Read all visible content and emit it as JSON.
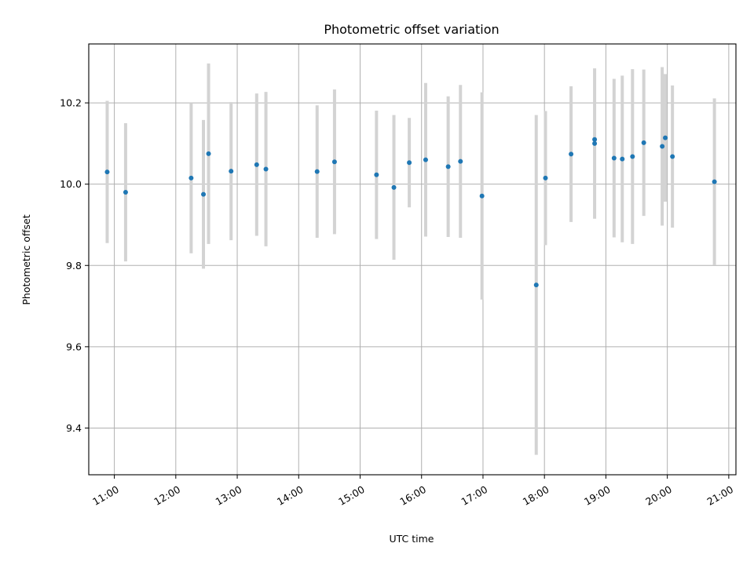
{
  "chart_data": {
    "type": "scatter",
    "title": "Photometric offset variation",
    "xlabel": "UTC time",
    "ylabel": "Photometric offset",
    "grid": true,
    "xlim": [
      "10:35",
      "21:07"
    ],
    "ylim": [
      9.285,
      10.345
    ],
    "x_ticks": [
      "11:00",
      "12:00",
      "13:00",
      "14:00",
      "15:00",
      "16:00",
      "17:00",
      "18:00",
      "19:00",
      "20:00",
      "21:00"
    ],
    "y_ticks": [
      "9.4",
      "9.6",
      "9.8",
      "10.0",
      "10.2"
    ],
    "colors": {
      "points": "#1f77b4",
      "errorbars": "#d3d3d3",
      "grid": "#b0b0b0"
    },
    "series": [
      {
        "points": [
          {
            "x": "10:53",
            "y": 10.03,
            "err": 0.175
          },
          {
            "x": "11:11",
            "y": 9.98,
            "err": 0.17
          },
          {
            "x": "12:15",
            "y": 10.015,
            "err": 0.185
          },
          {
            "x": "12:27",
            "y": 9.975,
            "err": 0.183
          },
          {
            "x": "12:32",
            "y": 10.075,
            "err": 0.222
          },
          {
            "x": "12:54",
            "y": 10.032,
            "err": 0.17
          },
          {
            "x": "13:19",
            "y": 10.048,
            "err": 0.175
          },
          {
            "x": "13:28",
            "y": 10.037,
            "err": 0.19
          },
          {
            "x": "14:18",
            "y": 10.031,
            "err": 0.163
          },
          {
            "x": "14:35",
            "y": 10.055,
            "err": 0.178
          },
          {
            "x": "15:16",
            "y": 10.023,
            "err": 0.158
          },
          {
            "x": "15:33",
            "y": 9.992,
            "err": 0.178
          },
          {
            "x": "15:48",
            "y": 10.053,
            "err": 0.11
          },
          {
            "x": "16:04",
            "y": 10.06,
            "err": 0.189
          },
          {
            "x": "16:26",
            "y": 10.043,
            "err": 0.173
          },
          {
            "x": "16:38",
            "y": 10.056,
            "err": 0.188
          },
          {
            "x": "16:59",
            "y": 9.971,
            "err": 0.255
          },
          {
            "x": "17:52",
            "y": 9.752,
            "err": 0.418
          },
          {
            "x": "18:01",
            "y": 10.015,
            "err": 0.165
          },
          {
            "x": "18:26",
            "y": 10.074,
            "err": 0.167
          },
          {
            "x": "18:49",
            "y": 10.1,
            "err": 0.185
          },
          {
            "x": "18:49",
            "y": 10.11,
            "err": 0.0
          },
          {
            "x": "19:08",
            "y": 10.064,
            "err": 0.195
          },
          {
            "x": "19:16",
            "y": 10.062,
            "err": 0.205
          },
          {
            "x": "19:26",
            "y": 10.068,
            "err": 0.215
          },
          {
            "x": "19:37",
            "y": 10.102,
            "err": 0.18
          },
          {
            "x": "19:55",
            "y": 10.093,
            "err": 0.195
          },
          {
            "x": "19:58",
            "y": 10.114,
            "err": 0.157
          },
          {
            "x": "20:05",
            "y": 10.068,
            "err": 0.175
          },
          {
            "x": "20:46",
            "y": 10.006,
            "err": 0.205
          }
        ]
      }
    ]
  }
}
